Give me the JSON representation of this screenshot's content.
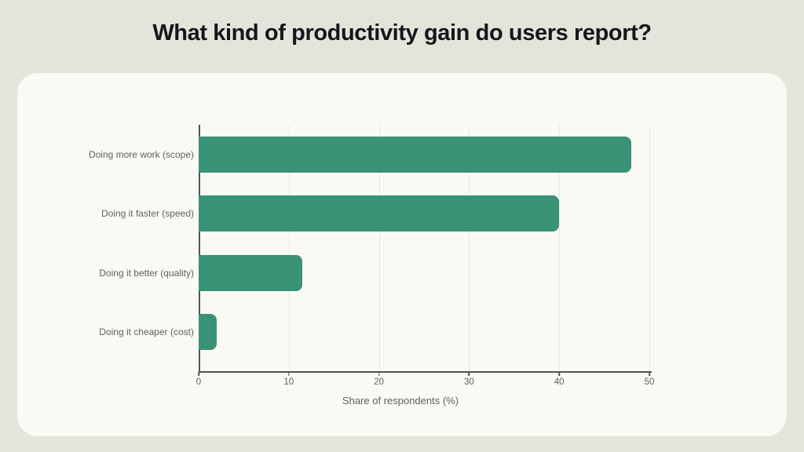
{
  "page": {
    "background_color": "#e3e4da",
    "card_color": "#faf9f4"
  },
  "header": {
    "title": "What kind of productivity gain do users report?"
  },
  "chart_data": {
    "type": "bar",
    "orientation": "horizontal",
    "title": "What kind of productivity gain do users report?",
    "categories": [
      "Doing more work (scope)",
      "Doing it faster (speed)",
      "Doing it better (quality)",
      "Doing it cheaper (cost)"
    ],
    "values": [
      48,
      40,
      11.5,
      2
    ],
    "xlabel": "Share of respondents (%)",
    "ylabel": "",
    "xlim": [
      0,
      50
    ],
    "x_ticks": [
      0,
      10,
      20,
      30,
      40,
      50
    ],
    "grid": "vertical-gridlines",
    "legend_position": "none",
    "bar_color": "#3a9277",
    "axis_color": "#515358",
    "grid_color": "#e9e9e1",
    "text_color": "#5d6165",
    "title_color": "#14161b"
  }
}
